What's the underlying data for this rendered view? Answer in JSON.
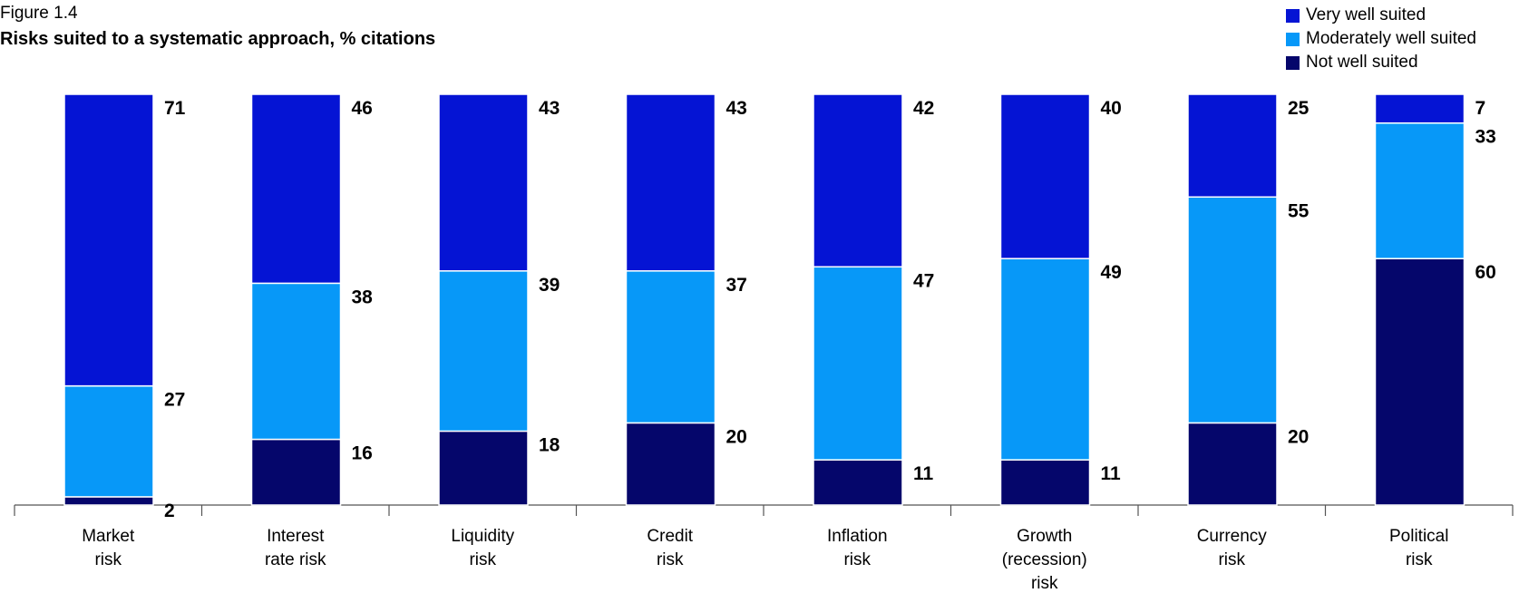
{
  "figure_label": "Figure 1.4",
  "chart_data": {
    "type": "bar",
    "stacked": true,
    "title": "Risks suited to a systematic approach, % citations",
    "categories": [
      [
        "Market",
        "risk"
      ],
      [
        "Interest",
        "rate risk"
      ],
      [
        "Liquidity",
        "risk"
      ],
      [
        "Credit",
        "risk"
      ],
      [
        "Inflation",
        "risk"
      ],
      [
        "Growth",
        "(recession)",
        "risk"
      ],
      [
        "Currency",
        "risk"
      ],
      [
        "Political",
        "risk"
      ]
    ],
    "series": [
      {
        "name": "Not well suited",
        "color": "#05066b",
        "values": [
          2,
          16,
          18,
          20,
          11,
          11,
          20,
          60
        ]
      },
      {
        "name": "Moderately well suited",
        "color": "#0798f8",
        "values": [
          27,
          38,
          39,
          37,
          47,
          49,
          55,
          33
        ]
      },
      {
        "name": "Very well suited",
        "color": "#0514d4",
        "values": [
          71,
          46,
          43,
          43,
          42,
          40,
          25,
          7
        ]
      }
    ],
    "legend": [
      {
        "name": "Very well suited",
        "color": "#0514d4"
      },
      {
        "name": "Moderately well suited",
        "color": "#0798f8"
      },
      {
        "name": "Not well suited",
        "color": "#05066b"
      }
    ],
    "ylim": [
      0,
      100
    ],
    "legend_position": "top-right",
    "grid": false
  }
}
